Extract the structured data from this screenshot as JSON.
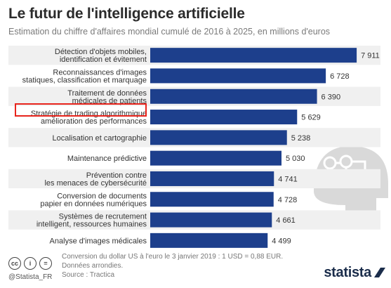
{
  "header": {
    "title": "Le futur de l'intelligence artificielle",
    "subtitle": "Estimation du chiffre d'affaires mondial cumulé de 2016 à 2025, en millions d'euros"
  },
  "chart_data": {
    "type": "bar",
    "orientation": "horizontal",
    "categories": [
      [
        "Détection d'objets mobiles,",
        "identification et évitement"
      ],
      [
        "Reconnaissances d'images",
        "statiques, classification et marquage"
      ],
      [
        "Traitement de données",
        "médicales de patients"
      ],
      [
        "Stratégie de trading algorithmique",
        "amélioration des performances"
      ],
      [
        "Localisation et cartographie"
      ],
      [
        "Maintenance prédictive"
      ],
      [
        "Prévention contre",
        "les menaces de cybersécurité"
      ],
      [
        "Conversion de documents",
        "papier en données numériques"
      ],
      [
        "Systèmes de recrutement",
        "intelligent, ressources humaines"
      ],
      [
        "Analyse d'images médicales"
      ]
    ],
    "values": [
      7911,
      6728,
      6390,
      5629,
      5238,
      5030,
      4741,
      4728,
      4661,
      4499
    ],
    "value_labels": [
      "7 911",
      "6 728",
      "6 390",
      "5 629",
      "5 238",
      "5 030",
      "4 741",
      "4 728",
      "4 661",
      "4 499"
    ],
    "xlim": [
      0,
      8500
    ],
    "bar_color": "#1d3f8c",
    "row_stripe_color": "#f0f0f0",
    "highlighted_category_index": 3,
    "highlight_color": "#e8241c"
  },
  "footer": {
    "icons": [
      "creative-commons-icon",
      "attribution-icon",
      "no-derivatives-icon"
    ],
    "icon_glyphs": [
      "cc",
      "i",
      "="
    ],
    "handle": "@Statista_FR",
    "notes": [
      "Conversion du dollar US à l'euro le 3 janvier 2019 : 1 USD = 0,88 EUR.",
      "Données arrondies.",
      "Source : Tractica"
    ],
    "brand": "statista"
  }
}
